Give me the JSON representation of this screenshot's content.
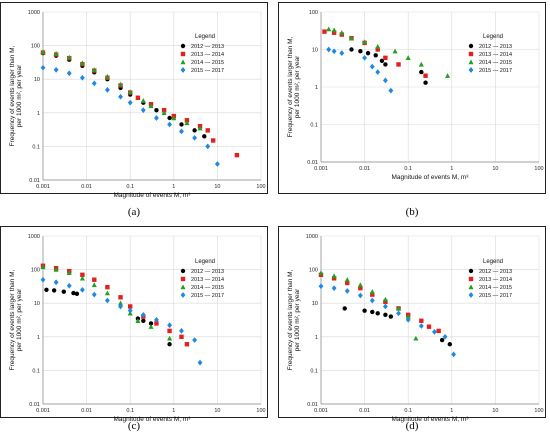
{
  "figure": {
    "panel_labels": [
      "(a)",
      "(b)",
      "(c)",
      "(d)"
    ]
  },
  "chart_data": [
    {
      "type": "scatter",
      "panel": "(a)",
      "xlabel": "Magnitude of events M, m³",
      "ylabel": "Frequency of events larger than M, per 1000 m², per year",
      "xscale": "log",
      "yscale": "log",
      "xlim": [
        0.001,
        100
      ],
      "ylim": [
        0.01,
        1000
      ],
      "xticks": [
        "0.001",
        "0.01",
        "0.1",
        "1",
        "10",
        "100"
      ],
      "yticks": [
        "0.01",
        "0.1",
        "1",
        "10",
        "100",
        "1000"
      ],
      "legend_title": "Legend",
      "legend_position": "top-right",
      "series": [
        {
          "name": "2012 — 2013",
          "color": "#000000",
          "marker": "circle",
          "x": [
            0.001,
            0.002,
            0.004,
            0.008,
            0.015,
            0.03,
            0.06,
            0.1,
            0.2,
            0.4,
            0.8,
            1.5,
            3,
            5
          ],
          "y": [
            60,
            50,
            38,
            25,
            16,
            10,
            5.5,
            3.5,
            2.0,
            1.2,
            0.7,
            0.45,
            0.3,
            0.2
          ]
        },
        {
          "name": "2013 — 2014",
          "color": "#e32020",
          "marker": "square",
          "x": [
            0.001,
            0.002,
            0.004,
            0.008,
            0.015,
            0.03,
            0.06,
            0.1,
            0.15,
            0.3,
            0.6,
            1,
            2,
            4,
            6,
            8,
            28
          ],
          "y": [
            62,
            54,
            42,
            28,
            18,
            11,
            6.5,
            4.0,
            2.8,
            1.8,
            1.2,
            0.8,
            0.6,
            0.4,
            0.3,
            0.15,
            0.055
          ]
        },
        {
          "name": "2014 — 2015",
          "color": "#22a022",
          "marker": "triangle",
          "x": [
            0.001,
            0.002,
            0.004,
            0.008,
            0.015,
            0.03,
            0.06,
            0.1,
            0.2,
            0.3,
            0.6,
            1,
            2,
            4
          ],
          "y": [
            65,
            58,
            45,
            30,
            19,
            12,
            7.0,
            4.2,
            2.3,
            1.6,
            1.0,
            0.7,
            0.5,
            0.35
          ]
        },
        {
          "name": "2015 — 2017",
          "color": "#1e88e5",
          "marker": "diamond",
          "x": [
            0.001,
            0.002,
            0.004,
            0.008,
            0.015,
            0.03,
            0.06,
            0.1,
            0.2,
            0.4,
            0.8,
            1.5,
            3,
            6,
            10
          ],
          "y": [
            22,
            19,
            15,
            11,
            7.5,
            4.8,
            3.0,
            2.0,
            1.2,
            0.7,
            0.45,
            0.28,
            0.18,
            0.1,
            0.03
          ]
        }
      ]
    },
    {
      "type": "scatter",
      "panel": "(b)",
      "xlabel": "Magnitude of events M, m³",
      "ylabel": "Frequency of events larger than M, per 1000 m², per year",
      "xscale": "log",
      "yscale": "log",
      "xlim": [
        0.001,
        100
      ],
      "ylim": [
        0.01,
        100
      ],
      "xticks": [
        "0.001",
        "0.01",
        "0.1",
        "1",
        "10",
        "100"
      ],
      "yticks": [
        "0.01",
        "0.1",
        "1",
        "10",
        "100"
      ],
      "legend_title": "Legend",
      "legend_position": "top-right",
      "series": [
        {
          "name": "2012 — 2013",
          "color": "#000000",
          "marker": "circle",
          "x": [
            0.005,
            0.008,
            0.012,
            0.018,
            0.025,
            0.03,
            0.2,
            0.25
          ],
          "y": [
            10,
            9,
            8,
            7,
            5,
            4,
            2.5,
            1.3
          ]
        },
        {
          "name": "2013 — 2014",
          "color": "#e32020",
          "marker": "square",
          "x": [
            0.0012,
            0.002,
            0.003,
            0.005,
            0.01,
            0.02,
            0.03,
            0.06,
            0.25
          ],
          "y": [
            30,
            28,
            25,
            20,
            15,
            10,
            6,
            4,
            2
          ]
        },
        {
          "name": "2014 — 2015",
          "color": "#22a022",
          "marker": "triangle",
          "x": [
            0.0015,
            0.002,
            0.003,
            0.005,
            0.01,
            0.02,
            0.05,
            0.1,
            0.2,
            0.8
          ],
          "y": [
            35,
            33,
            28,
            20,
            16,
            12,
            9,
            6,
            4,
            2
          ]
        },
        {
          "name": "2015 — 2017",
          "color": "#1e88e5",
          "marker": "diamond",
          "x": [
            0.0015,
            0.002,
            0.003,
            0.01,
            0.015,
            0.02,
            0.03,
            0.04
          ],
          "y": [
            10,
            9,
            8,
            6,
            3.5,
            2.5,
            1.5,
            0.8
          ]
        }
      ]
    },
    {
      "type": "scatter",
      "panel": "(c)",
      "xlabel": "Magnitude of events M, m³",
      "ylabel": "Frequency of events larger than M, per 1000 m², per year",
      "xscale": "log",
      "yscale": "log",
      "xlim": [
        0.001,
        100
      ],
      "ylim": [
        0.01,
        1000
      ],
      "xticks": [
        "0.001",
        "0.01",
        "0.1",
        "1",
        "10",
        "100"
      ],
      "yticks": [
        "0.01",
        "0.1",
        "1",
        "10",
        "100",
        "1000"
      ],
      "legend_title": "Legend",
      "legend_position": "top-right",
      "series": [
        {
          "name": "2012 — 2013",
          "color": "#000000",
          "marker": "circle",
          "x": [
            0.0012,
            0.0018,
            0.003,
            0.005,
            0.006,
            0.15,
            0.2,
            0.3,
            0.8
          ],
          "y": [
            25,
            24,
            22,
            20,
            19,
            3.5,
            3.0,
            2.5,
            0.6
          ]
        },
        {
          "name": "2013 — 2014",
          "color": "#e32020",
          "marker": "square",
          "x": [
            0.001,
            0.002,
            0.004,
            0.008,
            0.015,
            0.03,
            0.06,
            0.1,
            0.2,
            0.4,
            0.8,
            1.5,
            2
          ],
          "y": [
            130,
            110,
            90,
            70,
            50,
            30,
            15,
            8,
            4,
            2.5,
            1.5,
            1.0,
            0.6
          ]
        },
        {
          "name": "2014 — 2015",
          "color": "#22a022",
          "marker": "triangle",
          "x": [
            0.001,
            0.002,
            0.004,
            0.008,
            0.015,
            0.03,
            0.06,
            0.1,
            0.15,
            0.3,
            0.8
          ],
          "y": [
            120,
            100,
            80,
            55,
            35,
            20,
            10,
            5,
            3,
            2,
            0.9
          ]
        },
        {
          "name": "2015 — 2017",
          "color": "#1e88e5",
          "marker": "diamond",
          "x": [
            0.001,
            0.002,
            0.004,
            0.008,
            0.015,
            0.03,
            0.06,
            0.1,
            0.2,
            0.4,
            0.8,
            1.5,
            3,
            4
          ],
          "y": [
            50,
            42,
            33,
            25,
            18,
            12,
            8,
            6,
            4.5,
            3.2,
            2.2,
            1.5,
            0.8,
            0.17
          ]
        }
      ]
    },
    {
      "type": "scatter",
      "panel": "(d)",
      "xlabel": "Magnitude of events M, m³",
      "ylabel": "Frequency of events larger than M, per 1000 m², per year",
      "xscale": "log",
      "yscale": "log",
      "xlim": [
        0.001,
        100
      ],
      "ylim": [
        0.01,
        1000
      ],
      "xticks": [
        "0.001",
        "0.01",
        "0.1",
        "1",
        "10",
        "100"
      ],
      "yticks": [
        "0.01",
        "0.1",
        "1",
        "10",
        "100",
        "1000"
      ],
      "legend_title": "Legend",
      "legend_position": "top-right",
      "series": [
        {
          "name": "2012 — 2013",
          "color": "#000000",
          "marker": "circle",
          "x": [
            0.0035,
            0.01,
            0.015,
            0.02,
            0.03,
            0.04,
            0.6,
            0.9
          ],
          "y": [
            7,
            6,
            5.5,
            5,
            4.5,
            4,
            0.8,
            0.6
          ]
        },
        {
          "name": "2013 — 2014",
          "color": "#e32020",
          "marker": "square",
          "x": [
            0.001,
            0.002,
            0.004,
            0.008,
            0.015,
            0.03,
            0.06,
            0.1,
            0.2,
            0.3,
            0.5
          ],
          "y": [
            70,
            55,
            40,
            28,
            18,
            11,
            7,
            4.5,
            3,
            2,
            1.5
          ]
        },
        {
          "name": "2014 — 2015",
          "color": "#22a022",
          "marker": "triangle",
          "x": [
            0.001,
            0.002,
            0.004,
            0.008,
            0.015,
            0.03,
            0.06,
            0.1,
            0.15
          ],
          "y": [
            80,
            65,
            50,
            35,
            22,
            13,
            7,
            4,
            0.9
          ]
        },
        {
          "name": "2015 — 2017",
          "color": "#1e88e5",
          "marker": "diamond",
          "x": [
            0.001,
            0.002,
            0.004,
            0.008,
            0.015,
            0.03,
            0.06,
            0.1,
            0.2,
            0.4,
            0.7,
            1.1
          ],
          "y": [
            32,
            28,
            23,
            17,
            12,
            8,
            5,
            3.2,
            2.1,
            1.4,
            1.0,
            0.3
          ]
        }
      ]
    }
  ]
}
